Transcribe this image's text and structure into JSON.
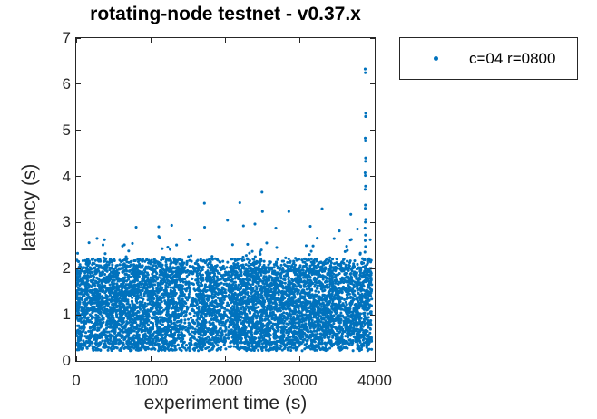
{
  "colors": {
    "marker": "#0072BD",
    "axis": "#262626",
    "text": "#000000",
    "background": "#FFFFFF"
  },
  "chart_data": {
    "type": "scatter",
    "title": "rotating-node testnet - v0.37.x",
    "xlabel": "experiment time (s)",
    "ylabel": "latency (s)",
    "xlim": [
      0,
      4000
    ],
    "ylim": [
      0,
      7
    ],
    "xticks": [
      0,
      1000,
      2000,
      3000,
      4000
    ],
    "yticks": [
      0,
      1,
      2,
      3,
      4,
      5,
      6,
      7
    ],
    "grid": false,
    "legend_position": "outside-top-right",
    "series": [
      {
        "name": "c=04 r=0800",
        "color": "#0072BD",
        "marker": "point",
        "marker_size_px": 3.1,
        "summary": "Dense band of ~7600 latency samples roughly uniform between 0.3 s and 2.2 s spanning x = 0 to 3960 s, a sparse halo of outliers up to ~3.7 s, and a vertical burst at x ~ 3875 s reaching 6.3 s",
        "band": {
          "seed": 7,
          "n_points": 7600,
          "x_min": 2,
          "x_max": 3960,
          "layers": [
            {
              "frac": 0.86,
              "y_min": 0.38,
              "y_max": 2.03
            },
            {
              "frac": 0.065,
              "y_min": 2.0,
              "y_max": 2.22
            },
            {
              "frac": 0.065,
              "y_min": 0.22,
              "y_max": 0.4
            },
            {
              "frac": 0.01,
              "y_min": 2.2,
              "y_max": 2.72,
              "pow": 2
            }
          ],
          "sparse_strips": [
            {
              "x_min": 1430,
              "x_max": 1620,
              "keep": 0.6
            },
            {
              "x_min": 1900,
              "x_max": 2040,
              "keep": 0.65
            }
          ]
        },
        "outliers": [
          [
            803,
            2.9
          ],
          [
            1106,
            2.91
          ],
          [
            1280,
            2.94
          ],
          [
            1718,
            3.42
          ],
          [
            1721,
            2.9
          ],
          [
            2027,
            3.05
          ],
          [
            2192,
            3.43
          ],
          [
            2241,
            2.93
          ],
          [
            2395,
            2.97
          ],
          [
            2490,
            3.66
          ],
          [
            2496,
            3.24
          ],
          [
            2675,
            2.88
          ],
          [
            2849,
            3.24
          ],
          [
            3137,
            2.92
          ],
          [
            3295,
            3.3
          ],
          [
            3526,
            2.82
          ],
          [
            3680,
            3.18
          ],
          [
            3769,
            2.86
          ]
        ],
        "spike_points": [
          [
            3872,
            6.33
          ],
          [
            3874,
            6.25
          ],
          [
            3879,
            5.37
          ],
          [
            3877,
            5.3
          ],
          [
            3873,
            4.83
          ],
          [
            3875,
            4.77
          ],
          [
            3878,
            4.4
          ],
          [
            3876,
            4.33
          ],
          [
            3871,
            4.08
          ],
          [
            3874,
            4.02
          ],
          [
            3877,
            3.79
          ],
          [
            3872,
            3.72
          ],
          [
            3875,
            3.38
          ],
          [
            3873,
            3.31
          ],
          [
            3878,
            3.07
          ],
          [
            3874,
            3.01
          ],
          [
            3870,
            2.88
          ],
          [
            3876,
            2.73
          ],
          [
            3872,
            2.61
          ],
          [
            3877,
            2.48
          ],
          [
            3869,
            2.36
          ]
        ]
      }
    ]
  }
}
